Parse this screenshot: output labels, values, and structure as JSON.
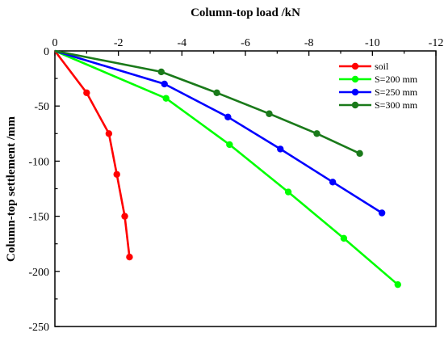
{
  "chart_data": {
    "type": "line",
    "xlabel": "Column-top load /kN",
    "ylabel": "Column-top settlement /mm",
    "xlim": [
      0,
      -12
    ],
    "ylim": [
      0,
      -250
    ],
    "x_ticks": [
      0,
      -2,
      -4,
      -6,
      -8,
      -10,
      -12
    ],
    "y_ticks": [
      0,
      -50,
      -100,
      -150,
      -200,
      -250
    ],
    "x_tick_labels": [
      "0",
      "-2",
      "-4",
      "-6",
      "-8",
      "-10",
      "-12"
    ],
    "y_tick_labels": [
      "0",
      "-50",
      "-100",
      "-150",
      "-200",
      "-250"
    ],
    "legend_position": "top-right",
    "grid": false,
    "series": [
      {
        "name": "soil",
        "color": "#ff0000",
        "x": [
          0,
          -1.0,
          -1.7,
          -1.95,
          -2.2,
          -2.35
        ],
        "y": [
          0,
          -38,
          -75,
          -112,
          -150,
          -187
        ]
      },
      {
        "name": "S=200 mm",
        "color": "#00ff00",
        "x": [
          0,
          -3.5,
          -5.5,
          -7.35,
          -9.1,
          -10.8
        ],
        "y": [
          0,
          -43,
          -85,
          -128,
          -170,
          -212
        ]
      },
      {
        "name": "S=250 mm",
        "color": "#0000ff",
        "x": [
          0,
          -3.45,
          -5.45,
          -7.1,
          -8.75,
          -10.3
        ],
        "y": [
          0,
          -30,
          -60,
          -89,
          -119,
          -147
        ]
      },
      {
        "name": "S=300 mm",
        "color": "#1a7a1a",
        "x": [
          0,
          -3.35,
          -5.1,
          -6.75,
          -8.25,
          -9.6
        ],
        "y": [
          0,
          -19,
          -38,
          -57,
          -75,
          -93
        ]
      }
    ]
  }
}
